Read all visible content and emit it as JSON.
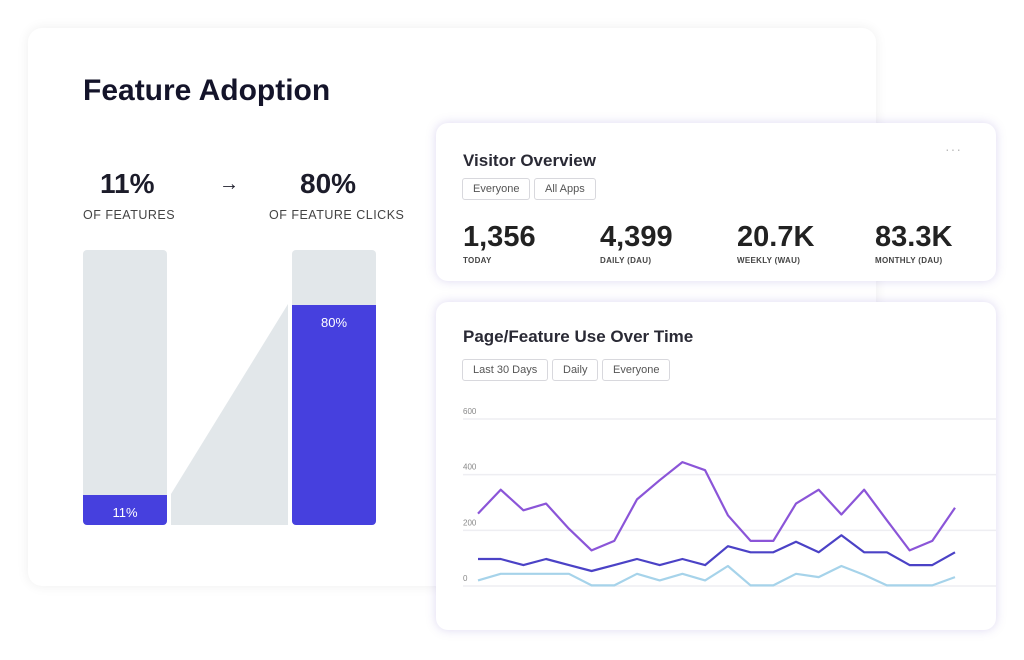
{
  "feature_adoption": {
    "title": "Feature Adoption",
    "left_value": "11%",
    "left_label": "OF FEATURES",
    "arrow": "→",
    "right_value": "80%",
    "right_label": "OF FEATURE CLICKS",
    "left_bar_label": "11%",
    "right_bar_label": "80%",
    "left_fill": 11,
    "right_fill": 80,
    "accent": "#4640de"
  },
  "visitor_overview": {
    "title": "Visitor Overview",
    "menu": "···",
    "filters": [
      "Everyone",
      "All Apps"
    ],
    "stats": [
      {
        "value": "1,356",
        "label": "TODAY"
      },
      {
        "value": "4,399",
        "label": "DAILY (DAU)"
      },
      {
        "value": "20.7K",
        "label": "WEEKLY (WAU)"
      },
      {
        "value": "83.3K",
        "label": "MONTHLY (DAU)"
      }
    ]
  },
  "page_feature": {
    "title": "Page/Feature Use Over Time",
    "filters": [
      "Last 30 Days",
      "Daily",
      "Everyone"
    ]
  },
  "chart_data": {
    "type": "line",
    "ylim": [
      0,
      600
    ],
    "yticks": [
      "600",
      "400",
      "200",
      "0"
    ],
    "grid": true,
    "series": [
      {
        "color": "#8b55d8",
        "values": [
          260,
          346,
          272,
          296,
          206,
          128,
          162,
          311,
          380,
          445,
          416,
          254,
          162,
          162,
          296,
          346,
          257,
          346,
          236,
          128,
          162,
          281
        ]
      },
      {
        "color": "#4b42c6",
        "values": [
          97,
          97,
          75,
          97,
          75,
          54,
          75,
          97,
          75,
          97,
          75,
          143,
          121,
          121,
          159,
          121,
          182,
          121,
          121,
          75,
          75,
          121
        ]
      },
      {
        "color": "#a6d3ea",
        "values": [
          20,
          44,
          44,
          44,
          44,
          2,
          2,
          44,
          20,
          44,
          20,
          72,
          2,
          2,
          44,
          32,
          72,
          40,
          2,
          2,
          2,
          32
        ]
      }
    ]
  }
}
